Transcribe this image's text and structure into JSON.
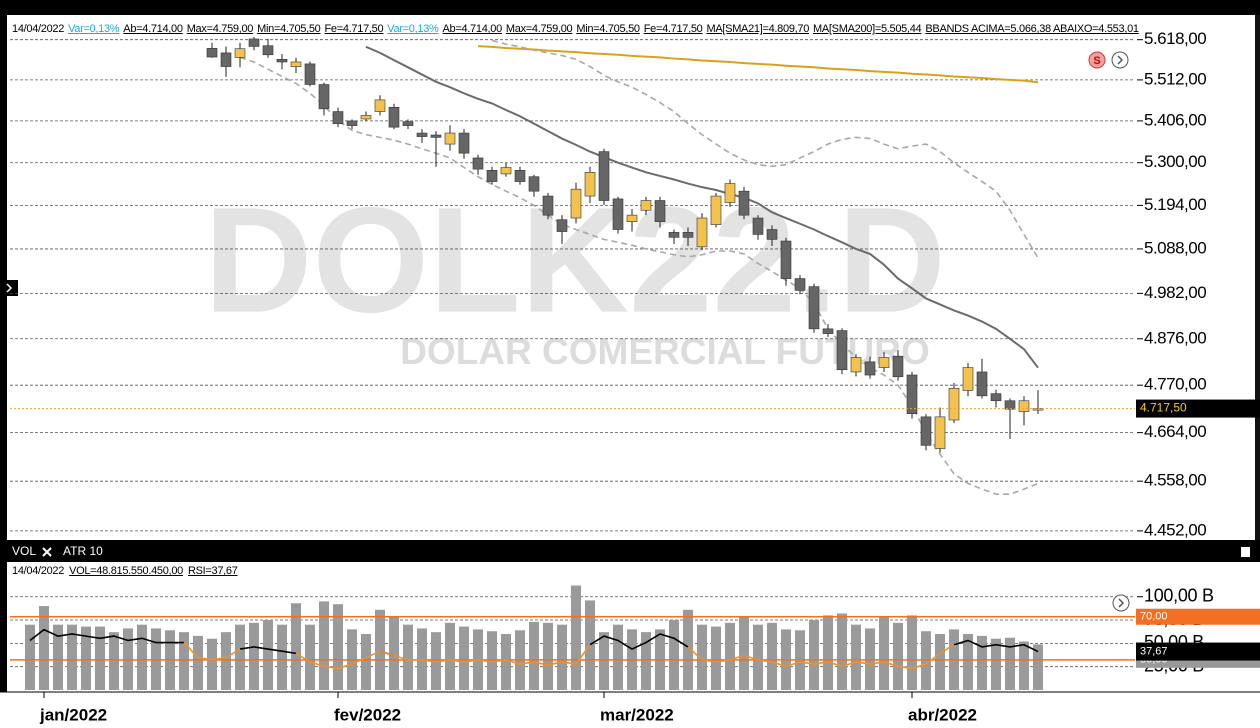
{
  "info_bar": [
    {
      "text": "14/04/2022",
      "color": "#000"
    },
    {
      "text": "Var=0,13%",
      "color": "#19a9dc"
    },
    {
      "text": "Ab=4.714,00",
      "color": "#000"
    },
    {
      "text": "Max=4.759,00",
      "color": "#000"
    },
    {
      "text": "Min=4.705,50",
      "color": "#000"
    },
    {
      "text": "Fe=4.717,50",
      "color": "#000"
    },
    {
      "text": "Var=0,13%",
      "color": "#19a9dc"
    },
    {
      "text": "Ab=4.714,00",
      "color": "#000"
    },
    {
      "text": "Max=4.759,00",
      "color": "#000"
    },
    {
      "text": "Min=4.705,50",
      "color": "#000"
    },
    {
      "text": "Fe=4.717,50",
      "color": "#000"
    },
    {
      "text": "MA[SMA21]=4.809,70",
      "color": "#000"
    },
    {
      "text": "MA[SMA200]=5.505,44",
      "color": "#000"
    },
    {
      "text": "BBANDS ACIMA=5.066,38 ABAIXO=4.553,01",
      "color": "#000"
    }
  ],
  "watermark": {
    "symbol": "DOLK22.D",
    "name": "DOLAR COMERCIAL FUTURO"
  },
  "last_price": {
    "value": 4717.5,
    "label": "4.717,50"
  },
  "lower_tabs": [
    "VOL",
    "ATR 10"
  ],
  "lower_info": [
    "14/04/2022",
    "VOL=48.815.550.450,00",
    "RSI=37,67"
  ],
  "chart_data": [
    {
      "type": "candlestick",
      "log_scale": true,
      "grid": true,
      "up_color": "#f2c14e",
      "down_color": "#666666",
      "ylim": [
        4437,
        5676
      ],
      "yticks": [
        {
          "value": 5618,
          "label": "5.618,00"
        },
        {
          "value": 5512,
          "label": "5.512,00"
        },
        {
          "value": 5406,
          "label": "5.406,00"
        },
        {
          "value": 5300,
          "label": "5.300,00"
        },
        {
          "value": 5194,
          "label": "5.194,00"
        },
        {
          "value": 5088,
          "label": "5.088,00"
        },
        {
          "value": 4982,
          "label": "4.982,00"
        },
        {
          "value": 4876,
          "label": "4.876,00"
        },
        {
          "value": 4770,
          "label": "4.770,00"
        },
        {
          "value": 4664,
          "label": "4.664,00"
        },
        {
          "value": 4558,
          "label": "4.558,00"
        },
        {
          "value": 4452,
          "label": "4.452,00"
        }
      ],
      "open": [
        null,
        null,
        null,
        null,
        null,
        null,
        null,
        null,
        null,
        null,
        null,
        null,
        null,
        5595,
        5583,
        5571,
        5620,
        5602,
        5566,
        5547,
        5554,
        5500,
        5430,
        5406,
        5411,
        5430,
        5441,
        5404,
        5375,
        5370,
        5347,
        5375,
        5312,
        5281,
        5272,
        5281,
        5265,
        5217,
        5159,
        5163,
        5217,
        5328,
        5210,
        5154,
        5182,
        5206,
        5128,
        5128,
        5093,
        5147,
        5201,
        5229,
        5163,
        5135,
        5107,
        5017,
        4998,
        4899,
        4895,
        4800,
        4823,
        4810,
        4836,
        4793,
        4699,
        4629,
        4692,
        4758,
        4800,
        4751,
        4735,
        4711,
        4714
      ],
      "high": [
        null,
        null,
        null,
        null,
        null,
        null,
        null,
        null,
        null,
        null,
        null,
        null,
        null,
        5610,
        5600,
        5610,
        5640,
        5620,
        5580,
        5570,
        5560,
        5505,
        5440,
        5410,
        5430,
        5472,
        5450,
        5410,
        5385,
        5380,
        5395,
        5385,
        5320,
        5290,
        5300,
        5290,
        5270,
        5225,
        5170,
        5250,
        5290,
        5335,
        5215,
        5185,
        5215,
        5215,
        5135,
        5140,
        5175,
        5225,
        5258,
        5240,
        5170,
        5145,
        5115,
        5025,
        5005,
        4910,
        4900,
        4840,
        4835,
        4845,
        4850,
        4800,
        4705,
        4720,
        4775,
        4820,
        4830,
        4760,
        4740,
        4745,
        4759
      ],
      "low": [
        null,
        null,
        null,
        null,
        null,
        null,
        null,
        null,
        null,
        null,
        null,
        null,
        null,
        5570,
        5520,
        5545,
        5590,
        5570,
        5540,
        5530,
        5495,
        5420,
        5390,
        5385,
        5405,
        5420,
        5385,
        5385,
        5350,
        5290,
        5330,
        5310,
        5270,
        5245,
        5265,
        5245,
        5215,
        5160,
        5100,
        5150,
        5200,
        5195,
        5125,
        5130,
        5170,
        5140,
        5100,
        5095,
        5085,
        5140,
        5190,
        5160,
        5110,
        5095,
        5000,
        4980,
        4890,
        4880,
        4795,
        4790,
        4785,
        4800,
        4780,
        4695,
        4625,
        4620,
        4685,
        4745,
        4740,
        4720,
        4650,
        4680,
        4705.5
      ],
      "close": [
        null,
        null,
        null,
        null,
        null,
        null,
        null,
        null,
        null,
        null,
        null,
        null,
        null,
        5572,
        5547,
        5594,
        5600,
        5578,
        5559,
        5559,
        5500,
        5437,
        5399,
        5394,
        5420,
        5460,
        5390,
        5394,
        5366,
        5364,
        5375,
        5324,
        5284,
        5253,
        5288,
        5253,
        5229,
        5170,
        5130,
        5234,
        5276,
        5206,
        5135,
        5170,
        5206,
        5154,
        5116,
        5116,
        5163,
        5217,
        5248,
        5170,
        5123,
        5111,
        5017,
        4989,
        4899,
        4888,
        4805,
        4833,
        4793,
        4833,
        4789,
        4706,
        4636,
        4699,
        4763,
        4810,
        4746,
        4735,
        4716,
        4735,
        4717.5
      ],
      "series": [
        {
          "color": "#6b6b6b",
          "dashed": false,
          "values": [
            null,
            null,
            null,
            null,
            null,
            null,
            null,
            null,
            null,
            null,
            null,
            null,
            null,
            null,
            null,
            null,
            null,
            null,
            null,
            null,
            null,
            null,
            null,
            null,
            5599,
            5583,
            5564,
            5545,
            5526,
            5507,
            5493,
            5477,
            5463,
            5451,
            5434,
            5418,
            5399,
            5380,
            5361,
            5345,
            5328,
            5314,
            5300,
            5288,
            5276,
            5267,
            5258,
            5248,
            5239,
            5232,
            5222,
            5213,
            5199,
            5177,
            5163,
            5149,
            5135,
            5119,
            5104,
            5088,
            5076,
            5050,
            5017,
            4994,
            4970,
            4956,
            4942,
            4930,
            4916,
            4899,
            4876,
            4852,
            4809.7
          ]
        },
        {
          "color": "#d9a21b",
          "dashed": false,
          "values": [
            null,
            null,
            null,
            null,
            null,
            null,
            null,
            null,
            null,
            null,
            null,
            null,
            null,
            null,
            null,
            null,
            null,
            null,
            null,
            null,
            null,
            null,
            null,
            null,
            null,
            null,
            null,
            null,
            null,
            null,
            null,
            null,
            5601,
            5599,
            5596,
            5594,
            5592,
            5589,
            5587,
            5585,
            5582,
            5580,
            5578,
            5575,
            5573,
            5571,
            5568,
            5566,
            5563,
            5561,
            5559,
            5556,
            5554,
            5552,
            5549,
            5547,
            5545,
            5542,
            5540,
            5538,
            5535,
            5533,
            5531,
            5528,
            5526,
            5524,
            5521,
            5519,
            5517,
            5514,
            5512,
            5510,
            5505.44
          ]
        },
        {
          "color": "#a8a8a8",
          "dashed": true,
          "values": [
            null,
            null,
            null,
            null,
            null,
            null,
            null,
            null,
            null,
            null,
            null,
            null,
            null,
            null,
            null,
            null,
            null,
            null,
            null,
            null,
            null,
            null,
            null,
            null,
            null,
            null,
            null,
            null,
            null,
            null,
            null,
            null,
            null,
            5616,
            5606,
            5599,
            5590,
            5583,
            5576,
            5566,
            5547,
            5524,
            5507,
            5493,
            5474,
            5453,
            5430,
            5399,
            5371,
            5347,
            5324,
            5307,
            5295,
            5291,
            5295,
            5312,
            5328,
            5347,
            5359,
            5364,
            5361,
            5347,
            5335,
            5342,
            5347,
            5328,
            5300,
            5276,
            5253,
            5229,
            5182,
            5123,
            5066.38
          ]
        },
        {
          "color": "#a8a8a8",
          "dashed": true,
          "values": [
            null,
            null,
            null,
            null,
            null,
            null,
            null,
            null,
            null,
            null,
            null,
            null,
            null,
            null,
            null,
            5571,
            5559,
            5540,
            5521,
            5503,
            5477,
            5446,
            5406,
            5382,
            5371,
            5364,
            5357,
            5347,
            5335,
            5324,
            5312,
            5288,
            5265,
            5246,
            5229,
            5213,
            5194,
            5170,
            5147,
            5135,
            5123,
            5111,
            5104,
            5097,
            5088,
            5081,
            5074,
            5069,
            5074,
            5083,
            5083,
            5076,
            5053,
            5034,
            5013,
            4994,
            4958,
            4899,
            4864,
            4833,
            4810,
            4793,
            4770,
            4723,
            4664,
            4617,
            4574,
            4553,
            4541,
            4530,
            4530,
            4541,
            4553.01
          ]
        }
      ]
    },
    {
      "type": "bar",
      "grid": true,
      "color": "#9a9a9a",
      "categories": [
        null,
        "jan/2022",
        null,
        null,
        null,
        null,
        null,
        null,
        null,
        null,
        null,
        null,
        null,
        null,
        null,
        null,
        null,
        null,
        null,
        null,
        null,
        null,
        "fev/2022",
        null,
        null,
        null,
        null,
        null,
        null,
        null,
        null,
        null,
        null,
        null,
        null,
        null,
        null,
        null,
        null,
        null,
        null,
        "mar/2022",
        null,
        null,
        null,
        null,
        null,
        null,
        null,
        null,
        null,
        null,
        null,
        null,
        null,
        null,
        null,
        null,
        null,
        null,
        null,
        null,
        null,
        "abr/2022",
        null,
        null,
        null,
        null,
        null,
        null,
        null,
        null,
        null
      ],
      "values": [
        70,
        90,
        70,
        70,
        68,
        68,
        62,
        66,
        70,
        66,
        64,
        62,
        58,
        55,
        62,
        70,
        72,
        75,
        70,
        93,
        70,
        95,
        92,
        65,
        60,
        86,
        78,
        70,
        66,
        62,
        72,
        68,
        65,
        63,
        60,
        64,
        73,
        72,
        70,
        112,
        96,
        62,
        70,
        65,
        62,
        65,
        75,
        86,
        70,
        68,
        72,
        78,
        70,
        72,
        65,
        64,
        75,
        80,
        82,
        70,
        66,
        78,
        72,
        80,
        63,
        60,
        65,
        60,
        58,
        55,
        56,
        52,
        48.82
      ],
      "ylim": [
        0,
        134
      ],
      "yticks": [
        {
          "value": 25,
          "label": "25,00 B"
        },
        {
          "value": 50,
          "label": "50,00 B"
        },
        {
          "value": 75,
          "label": "75,00 B"
        },
        {
          "value": 100,
          "label": "100,00 B"
        }
      ],
      "y2lim": [
        2,
        118
      ],
      "reference_line_color": "#f36f21",
      "y2ticks": [
        {
          "value": 30,
          "label": "30,00"
        },
        {
          "value": 70,
          "label": "70,00"
        }
      ],
      "last_value": {
        "value": 37.67,
        "label": "37,67"
      },
      "series": [
        {
          "axis": "y2",
          "color": "#000000",
          "values": [
            48,
            58,
            52,
            54,
            52,
            50,
            52,
            48,
            50,
            46,
            46,
            46,
            null,
            null,
            null,
            40,
            42,
            40,
            38,
            36,
            null,
            null,
            null,
            null,
            null,
            38,
            34,
            null,
            null,
            null,
            null,
            null,
            null,
            null,
            null,
            null,
            null,
            null,
            null,
            null,
            44,
            52,
            48,
            40,
            46,
            54,
            50,
            42,
            null,
            null,
            null,
            null,
            null,
            null,
            null,
            null,
            null,
            null,
            null,
            null,
            null,
            null,
            null,
            null,
            null,
            null,
            44,
            48,
            42,
            44,
            42,
            44,
            37.67
          ]
        },
        {
          "axis": "y2",
          "color": "#f0902a",
          "values": [
            null,
            null,
            null,
            null,
            null,
            null,
            null,
            null,
            null,
            null,
            null,
            46,
            32,
            30,
            32,
            40,
            null,
            null,
            null,
            36,
            28,
            24,
            22,
            26,
            32,
            38,
            34,
            30,
            30,
            28,
            30,
            28,
            30,
            28,
            30,
            26,
            28,
            25,
            28,
            26,
            44,
            null,
            null,
            null,
            null,
            null,
            null,
            42,
            30,
            28,
            30,
            34,
            30,
            28,
            24,
            28,
            26,
            28,
            24,
            28,
            26,
            28,
            24,
            22,
            26,
            36,
            44,
            null,
            null,
            null,
            null,
            null,
            null
          ]
        }
      ]
    }
  ]
}
